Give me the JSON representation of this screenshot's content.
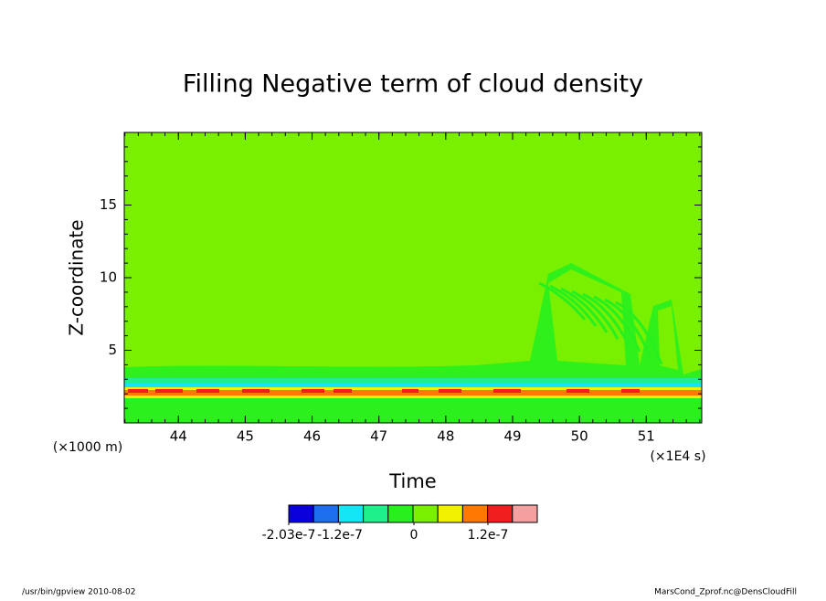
{
  "chart_data": {
    "type": "contour",
    "title": "Filling Negative term of cloud density",
    "xlabel": "Time",
    "ylabel": "Z-coordinate",
    "x_unit": "(×1E4 s)",
    "y_unit": "(×1000 m)",
    "xlim": [
      43.19,
      51.83
    ],
    "xticks": [
      44,
      45,
      46,
      47,
      48,
      49,
      50,
      51
    ],
    "ylim": [
      0,
      20
    ],
    "yticks": [
      5,
      10,
      15
    ],
    "colorbar": {
      "colors": [
        "#0a00dc",
        "#1e6ef0",
        "#14e6f5",
        "#1ef08c",
        "#28f01e",
        "#78f000",
        "#f0f000",
        "#ff7800",
        "#f01e1e",
        "#f5a0a0"
      ],
      "lim": [
        -2.03e-07,
        2e-07
      ],
      "ticks": [
        -2.03e-07,
        -1.2e-07,
        0,
        1.2e-07
      ]
    },
    "footer_left": "/usr/bin/gpview   2010-08-02",
    "footer_right": "MarsCond_Zprof.nc@DensCloudFill"
  }
}
